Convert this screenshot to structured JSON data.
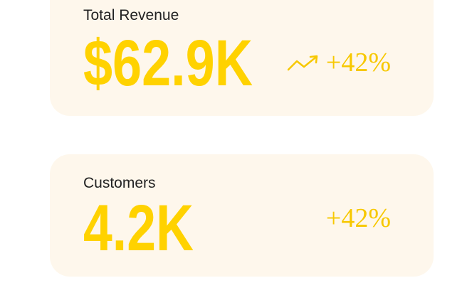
{
  "cards": [
    {
      "label": "Total Revenue",
      "value": "$62.9K",
      "change": "+42%"
    },
    {
      "label": "Customers",
      "value": "4.2K",
      "change": "+42%"
    }
  ]
}
